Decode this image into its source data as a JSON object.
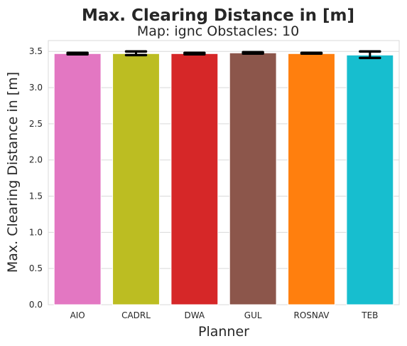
{
  "chart_data": {
    "type": "bar",
    "title": "Max. Clearing Distance in [m]",
    "subtitle": "Map: ignc Obstacles: 10",
    "xlabel": "Planner",
    "ylabel": "Max. Clearing Distance in [m]",
    "categories": [
      "AIO",
      "CADRL",
      "DWA",
      "GUL",
      "ROSNAV",
      "TEB"
    ],
    "values": [
      3.47,
      3.47,
      3.47,
      3.48,
      3.47,
      3.45
    ],
    "error_low": [
      3.46,
      3.45,
      3.46,
      3.47,
      3.47,
      3.41
    ],
    "error_high": [
      3.48,
      3.5,
      3.48,
      3.49,
      3.48,
      3.5
    ],
    "colors": [
      "#e377c2",
      "#bcbd22",
      "#d62728",
      "#8c564b",
      "#ff7f0e",
      "#17becf"
    ],
    "ylim": [
      0,
      3.65
    ],
    "yticks": [
      0.0,
      0.5,
      1.0,
      1.5,
      2.0,
      2.5,
      3.0,
      3.5
    ],
    "ytick_labels": [
      "0.0",
      "0.5",
      "1.0",
      "1.5",
      "2.0",
      "2.5",
      "3.0",
      "3.5"
    ],
    "grid": "horizontal",
    "legend": "none"
  }
}
